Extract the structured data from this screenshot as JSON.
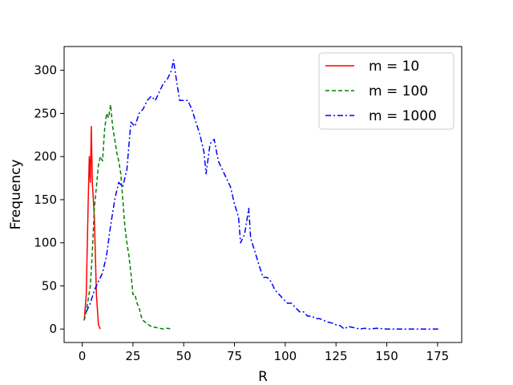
{
  "chart_data": {
    "type": "line",
    "title": "",
    "xlabel": "R",
    "ylabel": "Frequency",
    "xlim": [
      -8.9,
      186.9
    ],
    "ylim": [
      -15.6,
      327.6
    ],
    "xticks": [
      0,
      25,
      50,
      75,
      100,
      125,
      150,
      175
    ],
    "yticks": [
      0,
      50,
      100,
      150,
      200,
      250,
      300
    ],
    "grid": false,
    "legend_position": "upper right",
    "series": [
      {
        "name": "m = 10",
        "color": "#ff0000",
        "style": "solid",
        "points": [
          [
            1,
            10
          ],
          [
            2,
            40
          ],
          [
            3,
            150
          ],
          [
            3.5,
            200
          ],
          [
            4,
            170
          ],
          [
            4.5,
            235
          ],
          [
            5,
            170
          ],
          [
            6,
            130
          ],
          [
            7,
            40
          ],
          [
            8,
            5
          ],
          [
            9,
            0
          ]
        ]
      },
      {
        "name": "m = 100",
        "color": "#008000",
        "style": "dashed",
        "points": [
          [
            1,
            10
          ],
          [
            2,
            20
          ],
          [
            3,
            35
          ],
          [
            4,
            50
          ],
          [
            5,
            90
          ],
          [
            6,
            140
          ],
          [
            7,
            165
          ],
          [
            8,
            190
          ],
          [
            9,
            200
          ],
          [
            10,
            195
          ],
          [
            11,
            230
          ],
          [
            12,
            250
          ],
          [
            13,
            245
          ],
          [
            14,
            260
          ],
          [
            15,
            235
          ],
          [
            16,
            220
          ],
          [
            17,
            205
          ],
          [
            18,
            195
          ],
          [
            19,
            180
          ],
          [
            20,
            150
          ],
          [
            21,
            120
          ],
          [
            22,
            100
          ],
          [
            23,
            85
          ],
          [
            24,
            65
          ],
          [
            25,
            40
          ],
          [
            26,
            40
          ],
          [
            27,
            30
          ],
          [
            28,
            25
          ],
          [
            29,
            15
          ],
          [
            30,
            10
          ],
          [
            32,
            6
          ],
          [
            34,
            3
          ],
          [
            36,
            2
          ],
          [
            38,
            1
          ],
          [
            40,
            0
          ],
          [
            42,
            1
          ],
          [
            44,
            0
          ]
        ]
      },
      {
        "name": "m = 1000",
        "color": "#0000ff",
        "style": "dashdot",
        "points": [
          [
            2,
            20
          ],
          [
            4,
            30
          ],
          [
            6,
            45
          ],
          [
            8,
            55
          ],
          [
            10,
            65
          ],
          [
            12,
            85
          ],
          [
            14,
            120
          ],
          [
            16,
            150
          ],
          [
            18,
            170
          ],
          [
            20,
            165
          ],
          [
            22,
            185
          ],
          [
            24,
            240
          ],
          [
            26,
            235
          ],
          [
            28,
            250
          ],
          [
            30,
            255
          ],
          [
            32,
            265
          ],
          [
            34,
            270
          ],
          [
            36,
            265
          ],
          [
            38,
            275
          ],
          [
            40,
            285
          ],
          [
            42,
            290
          ],
          [
            44,
            300
          ],
          [
            45,
            312
          ],
          [
            46,
            295
          ],
          [
            48,
            265
          ],
          [
            50,
            265
          ],
          [
            52,
            265
          ],
          [
            54,
            255
          ],
          [
            56,
            240
          ],
          [
            58,
            225
          ],
          [
            60,
            205
          ],
          [
            61,
            180
          ],
          [
            63,
            215
          ],
          [
            65,
            220
          ],
          [
            67,
            195
          ],
          [
            69,
            185
          ],
          [
            71,
            175
          ],
          [
            73,
            165
          ],
          [
            75,
            145
          ],
          [
            77,
            130
          ],
          [
            78,
            100
          ],
          [
            80,
            110
          ],
          [
            82,
            140
          ],
          [
            83,
            105
          ],
          [
            85,
            90
          ],
          [
            87,
            75
          ],
          [
            89,
            60
          ],
          [
            91,
            60
          ],
          [
            93,
            55
          ],
          [
            95,
            45
          ],
          [
            97,
            40
          ],
          [
            99,
            35
          ],
          [
            101,
            30
          ],
          [
            103,
            30
          ],
          [
            105,
            25
          ],
          [
            107,
            20
          ],
          [
            109,
            20
          ],
          [
            111,
            15
          ],
          [
            113,
            15
          ],
          [
            115,
            12
          ],
          [
            117,
            12
          ],
          [
            119,
            10
          ],
          [
            121,
            8
          ],
          [
            123,
            7
          ],
          [
            125,
            5
          ],
          [
            127,
            4
          ],
          [
            129,
            0
          ],
          [
            131,
            3
          ],
          [
            133,
            2
          ],
          [
            135,
            1
          ],
          [
            137,
            0
          ],
          [
            139,
            1
          ],
          [
            141,
            0
          ],
          [
            145,
            1
          ],
          [
            150,
            0
          ],
          [
            155,
            0
          ],
          [
            160,
            0
          ],
          [
            165,
            0
          ],
          [
            170,
            0
          ],
          [
            176,
            0
          ]
        ]
      }
    ]
  }
}
